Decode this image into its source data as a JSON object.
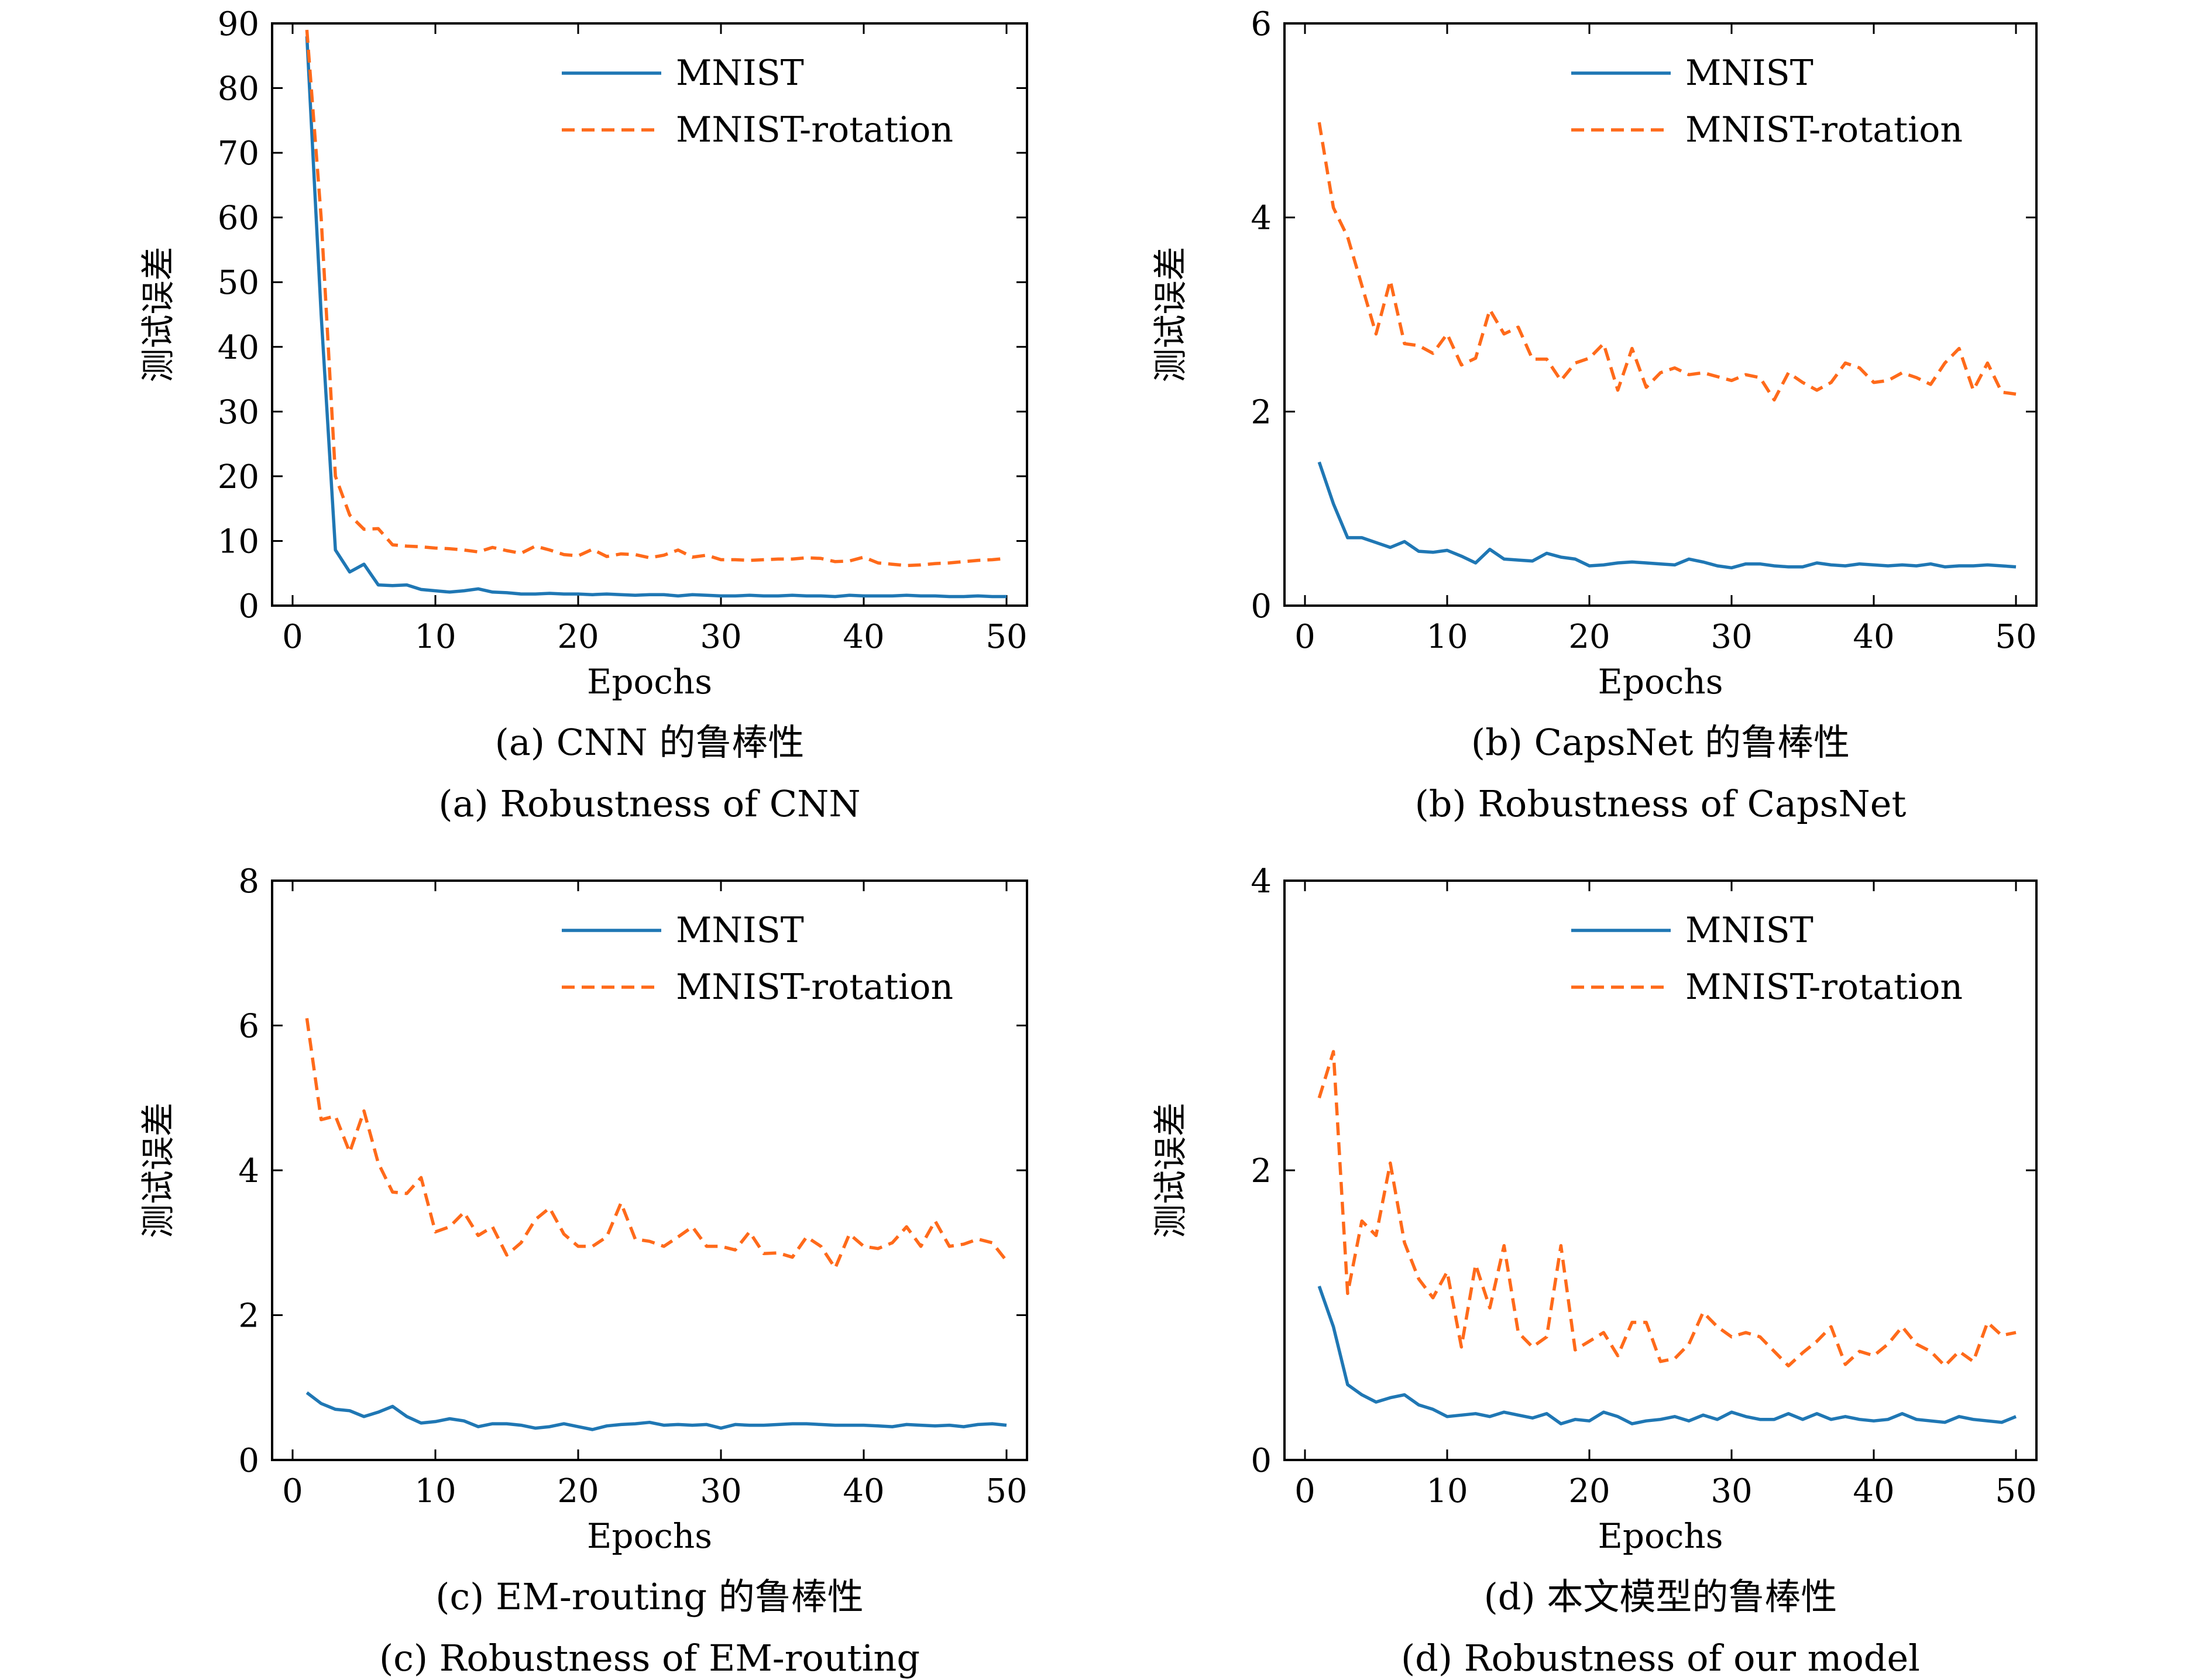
{
  "colors": {
    "mnist": "#1f77b4",
    "rotation": "#ff6a1a"
  },
  "chart_data": [
    {
      "type": "line",
      "xlabel": "Epochs",
      "ylabel": "测试误差",
      "xlim": [
        0,
        50
      ],
      "ylim": [
        0,
        90
      ],
      "xticks": [
        0,
        10,
        20,
        30,
        40,
        50
      ],
      "yticks": [
        0,
        10,
        20,
        30,
        40,
        50,
        60,
        70,
        80,
        90
      ],
      "legend_position": "top-right",
      "caption_cn": "(a) CNN 的鲁棒性",
      "caption_en": "(a) Robustness of CNN",
      "series": [
        {
          "name": "MNIST",
          "style": "solid",
          "x": [
            1,
            2,
            3,
            4,
            5,
            6,
            7,
            8,
            9,
            10,
            11,
            12,
            13,
            14,
            15,
            16,
            17,
            18,
            19,
            20,
            21,
            22,
            23,
            24,
            25,
            26,
            27,
            28,
            29,
            30,
            31,
            32,
            33,
            34,
            35,
            36,
            37,
            38,
            39,
            40,
            41,
            42,
            43,
            44,
            45,
            46,
            47,
            48,
            49,
            50
          ],
          "y": [
            88,
            45,
            8.6,
            5.2,
            6.4,
            3.2,
            3.1,
            3.2,
            2.5,
            2.3,
            2.1,
            2.3,
            2.6,
            2.1,
            2.0,
            1.8,
            1.8,
            1.9,
            1.8,
            1.8,
            1.7,
            1.8,
            1.7,
            1.6,
            1.7,
            1.7,
            1.5,
            1.7,
            1.6,
            1.5,
            1.5,
            1.6,
            1.5,
            1.5,
            1.6,
            1.5,
            1.5,
            1.4,
            1.6,
            1.5,
            1.5,
            1.5,
            1.6,
            1.5,
            1.5,
            1.4,
            1.4,
            1.5,
            1.4,
            1.4
          ]
        },
        {
          "name": "MNIST-rotation",
          "style": "dashed",
          "x": [
            1,
            2,
            3,
            4,
            5,
            6,
            7,
            8,
            9,
            10,
            11,
            12,
            13,
            14,
            15,
            16,
            17,
            18,
            19,
            20,
            21,
            22,
            23,
            24,
            25,
            26,
            27,
            28,
            29,
            30,
            31,
            32,
            33,
            34,
            35,
            36,
            37,
            38,
            39,
            40,
            41,
            42,
            43,
            44,
            45,
            46,
            47,
            48,
            49,
            50
          ],
          "y": [
            89,
            60,
            20,
            14,
            11.8,
            11.9,
            9.4,
            9.2,
            9.1,
            8.9,
            8.8,
            8.6,
            8.3,
            9.0,
            8.5,
            8.1,
            9.2,
            8.6,
            7.9,
            7.7,
            8.7,
            7.6,
            8.0,
            7.9,
            7.4,
            7.8,
            8.6,
            7.5,
            7.8,
            7.1,
            7.1,
            7.0,
            7.1,
            7.2,
            7.2,
            7.4,
            7.3,
            6.8,
            6.9,
            7.5,
            6.6,
            6.4,
            6.2,
            6.3,
            6.5,
            6.6,
            6.8,
            7.0,
            7.1,
            7.3
          ]
        }
      ]
    },
    {
      "type": "line",
      "xlabel": "Epochs",
      "ylabel": "测试误差",
      "xlim": [
        0,
        50
      ],
      "ylim": [
        0,
        6
      ],
      "xticks": [
        0,
        10,
        20,
        30,
        40,
        50
      ],
      "yticks": [
        0,
        2,
        4,
        6
      ],
      "legend_position": "top-right",
      "caption_cn": "(b) CapsNet 的鲁棒性",
      "caption_en": "(b) Robustness of CapsNet",
      "series": [
        {
          "name": "MNIST",
          "style": "solid",
          "x": [
            1,
            2,
            3,
            4,
            5,
            6,
            7,
            8,
            9,
            10,
            11,
            12,
            13,
            14,
            15,
            16,
            17,
            18,
            19,
            20,
            21,
            22,
            23,
            24,
            25,
            26,
            27,
            28,
            29,
            30,
            31,
            32,
            33,
            34,
            35,
            36,
            37,
            38,
            39,
            40,
            41,
            42,
            43,
            44,
            45,
            46,
            47,
            48,
            49,
            50
          ],
          "y": [
            1.48,
            1.05,
            0.7,
            0.7,
            0.65,
            0.6,
            0.66,
            0.56,
            0.55,
            0.57,
            0.51,
            0.44,
            0.58,
            0.48,
            0.47,
            0.46,
            0.54,
            0.5,
            0.48,
            0.41,
            0.42,
            0.44,
            0.45,
            0.44,
            0.43,
            0.42,
            0.48,
            0.45,
            0.41,
            0.39,
            0.43,
            0.43,
            0.41,
            0.4,
            0.4,
            0.44,
            0.42,
            0.41,
            0.43,
            0.42,
            0.41,
            0.42,
            0.41,
            0.43,
            0.4,
            0.41,
            0.41,
            0.42,
            0.41,
            0.4
          ]
        },
        {
          "name": "MNIST-rotation",
          "style": "dashed",
          "x": [
            1,
            2,
            3,
            4,
            5,
            6,
            7,
            8,
            9,
            10,
            11,
            12,
            13,
            14,
            15,
            16,
            17,
            18,
            19,
            20,
            21,
            22,
            23,
            24,
            25,
            26,
            27,
            28,
            29,
            30,
            31,
            32,
            33,
            34,
            35,
            36,
            37,
            38,
            39,
            40,
            41,
            42,
            43,
            44,
            45,
            46,
            47,
            48,
            49,
            50
          ],
          "y": [
            4.98,
            4.1,
            3.8,
            3.3,
            2.8,
            3.35,
            2.7,
            2.68,
            2.6,
            2.8,
            2.48,
            2.55,
            3.05,
            2.8,
            2.87,
            2.54,
            2.54,
            2.32,
            2.5,
            2.55,
            2.7,
            2.22,
            2.65,
            2.25,
            2.4,
            2.45,
            2.38,
            2.4,
            2.36,
            2.32,
            2.38,
            2.35,
            2.12,
            2.4,
            2.3,
            2.22,
            2.3,
            2.5,
            2.45,
            2.3,
            2.32,
            2.4,
            2.35,
            2.28,
            2.5,
            2.65,
            2.22,
            2.5,
            2.2,
            2.18
          ]
        }
      ]
    },
    {
      "type": "line",
      "xlabel": "Epochs",
      "ylabel": "测试误差",
      "xlim": [
        0,
        50
      ],
      "ylim": [
        0,
        8
      ],
      "xticks": [
        0,
        10,
        20,
        30,
        40,
        50
      ],
      "yticks": [
        0,
        2,
        4,
        6,
        8
      ],
      "legend_position": "top-right",
      "caption_cn": "(c) EM-routing 的鲁棒性",
      "caption_en": "(c) Robustness of EM-routing",
      "series": [
        {
          "name": "MNIST",
          "style": "solid",
          "x": [
            1,
            2,
            3,
            4,
            5,
            6,
            7,
            8,
            9,
            10,
            11,
            12,
            13,
            14,
            15,
            16,
            17,
            18,
            19,
            20,
            21,
            22,
            23,
            24,
            25,
            26,
            27,
            28,
            29,
            30,
            31,
            32,
            33,
            34,
            35,
            36,
            37,
            38,
            39,
            40,
            41,
            42,
            43,
            44,
            45,
            46,
            47,
            48,
            49,
            50
          ],
          "y": [
            0.93,
            0.78,
            0.7,
            0.68,
            0.6,
            0.66,
            0.74,
            0.6,
            0.51,
            0.53,
            0.57,
            0.54,
            0.46,
            0.5,
            0.5,
            0.48,
            0.44,
            0.46,
            0.5,
            0.46,
            0.42,
            0.47,
            0.49,
            0.5,
            0.52,
            0.48,
            0.49,
            0.48,
            0.49,
            0.44,
            0.49,
            0.48,
            0.48,
            0.49,
            0.5,
            0.5,
            0.49,
            0.48,
            0.48,
            0.48,
            0.47,
            0.46,
            0.49,
            0.48,
            0.47,
            0.48,
            0.46,
            0.49,
            0.5,
            0.48
          ]
        },
        {
          "name": "MNIST-rotation",
          "style": "dashed",
          "x": [
            1,
            2,
            3,
            4,
            5,
            6,
            7,
            8,
            9,
            10,
            11,
            12,
            13,
            14,
            15,
            16,
            17,
            18,
            19,
            20,
            21,
            22,
            23,
            24,
            25,
            26,
            27,
            28,
            29,
            30,
            31,
            32,
            33,
            34,
            35,
            36,
            37,
            38,
            39,
            40,
            41,
            42,
            43,
            44,
            45,
            46,
            47,
            48,
            49,
            50
          ],
          "y": [
            6.1,
            4.7,
            4.75,
            4.25,
            4.82,
            4.1,
            3.7,
            3.68,
            3.9,
            3.15,
            3.22,
            3.42,
            3.1,
            3.22,
            2.83,
            3.0,
            3.32,
            3.48,
            3.12,
            2.95,
            2.95,
            3.08,
            3.55,
            3.05,
            3.02,
            2.95,
            3.08,
            3.22,
            2.95,
            2.95,
            2.9,
            3.15,
            2.85,
            2.86,
            2.8,
            3.08,
            2.95,
            2.65,
            3.12,
            2.95,
            2.92,
            3.0,
            3.22,
            2.95,
            3.3,
            2.95,
            2.98,
            3.05,
            3.0,
            2.75
          ]
        }
      ]
    },
    {
      "type": "line",
      "xlabel": "Epochs",
      "ylabel": "测试误差",
      "xlim": [
        0,
        50
      ],
      "ylim": [
        0,
        4
      ],
      "xticks": [
        0,
        10,
        20,
        30,
        40,
        50
      ],
      "yticks": [
        0,
        2,
        4
      ],
      "legend_position": "top-right",
      "caption_cn": "(d) 本文模型的鲁棒性",
      "caption_en": "(d) Robustness of our model",
      "series": [
        {
          "name": "MNIST",
          "style": "solid",
          "x": [
            1,
            2,
            3,
            4,
            5,
            6,
            7,
            8,
            9,
            10,
            11,
            12,
            13,
            14,
            15,
            16,
            17,
            18,
            19,
            20,
            21,
            22,
            23,
            24,
            25,
            26,
            27,
            28,
            29,
            30,
            31,
            32,
            33,
            34,
            35,
            36,
            37,
            38,
            39,
            40,
            41,
            42,
            43,
            44,
            45,
            46,
            47,
            48,
            49,
            50
          ],
          "y": [
            1.2,
            0.92,
            0.52,
            0.45,
            0.4,
            0.43,
            0.45,
            0.38,
            0.35,
            0.3,
            0.31,
            0.32,
            0.3,
            0.33,
            0.31,
            0.29,
            0.32,
            0.25,
            0.28,
            0.27,
            0.33,
            0.3,
            0.25,
            0.27,
            0.28,
            0.3,
            0.27,
            0.31,
            0.28,
            0.33,
            0.3,
            0.28,
            0.28,
            0.32,
            0.28,
            0.32,
            0.28,
            0.3,
            0.28,
            0.27,
            0.28,
            0.32,
            0.28,
            0.27,
            0.26,
            0.3,
            0.28,
            0.27,
            0.26,
            0.3
          ]
        },
        {
          "name": "MNIST-rotation",
          "style": "dashed",
          "x": [
            1,
            2,
            3,
            4,
            5,
            6,
            7,
            8,
            9,
            10,
            11,
            12,
            13,
            14,
            15,
            16,
            17,
            18,
            19,
            20,
            21,
            22,
            23,
            24,
            25,
            26,
            27,
            28,
            29,
            30,
            31,
            32,
            33,
            34,
            35,
            36,
            37,
            38,
            39,
            40,
            41,
            42,
            43,
            44,
            45,
            46,
            47,
            48,
            49,
            50
          ],
          "y": [
            2.5,
            2.82,
            1.15,
            1.65,
            1.55,
            2.05,
            1.5,
            1.25,
            1.12,
            1.3,
            0.78,
            1.35,
            1.05,
            1.48,
            0.88,
            0.78,
            0.85,
            1.48,
            0.76,
            0.82,
            0.88,
            0.72,
            0.95,
            0.95,
            0.68,
            0.7,
            0.8,
            1.02,
            0.92,
            0.85,
            0.88,
            0.85,
            0.75,
            0.65,
            0.74,
            0.82,
            0.92,
            0.66,
            0.75,
            0.72,
            0.8,
            0.92,
            0.8,
            0.75,
            0.65,
            0.75,
            0.68,
            0.95,
            0.86,
            0.88
          ]
        }
      ]
    }
  ]
}
